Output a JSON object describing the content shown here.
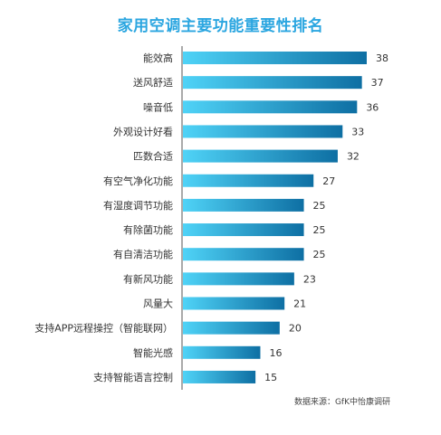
{
  "chart_data": {
    "type": "bar",
    "orientation": "horizontal",
    "title": "家用空调主要功能重要性排名",
    "source": "数据来源：GfK中怡康调研",
    "categories": [
      "能效高",
      "送风舒适",
      "噪音低",
      "外观设计好看",
      "匹数合适",
      "有空气净化功能",
      "有湿度调节功能",
      "有除菌功能",
      "有自清洁功能",
      "有新风功能",
      "风量大",
      "支持APP远程操控（智能联网）",
      "智能光感",
      "支持智能语言控制"
    ],
    "values": [
      38,
      37,
      36,
      33,
      32,
      27,
      25,
      25,
      25,
      23,
      21,
      20,
      16,
      15
    ],
    "value_labels": [
      "38",
      "37",
      "36",
      "33",
      "32",
      "27",
      "25",
      "25",
      "25",
      "23",
      "21",
      "20",
      "16",
      "15"
    ],
    "xlim": [
      0,
      38
    ],
    "grid": false,
    "legend": "none",
    "colors": {
      "title": "#2ba6e0",
      "bar_start": "#4fd3f7",
      "bar_end": "#0e6fa3",
      "axis": "#555555",
      "text": "#333333"
    }
  }
}
